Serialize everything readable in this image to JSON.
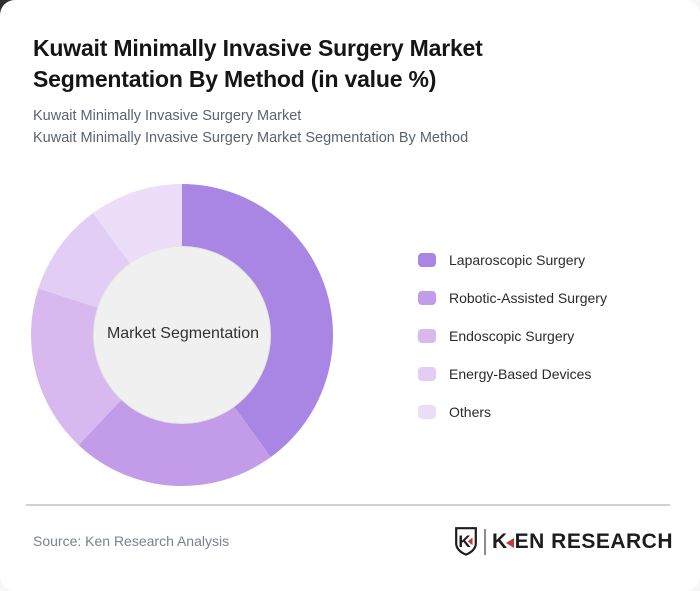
{
  "header": {
    "title": "Kuwait Minimally Invasive Surgery Market Segmentation By Method (in value %)",
    "subtitle_line1": "Kuwait Minimally Invasive Surgery Market",
    "subtitle_line2": "Kuwait Minimally Invasive Surgery Market Segmentation By Method"
  },
  "chart_data": {
    "type": "pie",
    "variant": "donut",
    "title": "Kuwait Minimally Invasive Surgery Market Segmentation By Method (in value %)",
    "center_label": "Market Segmentation",
    "categories": [
      "Laparoscopic Surgery",
      "Robotic-Assisted Surgery",
      "Endoscopic Surgery",
      "Energy-Based Devices",
      "Others"
    ],
    "values": [
      40,
      22,
      18,
      10,
      10
    ],
    "unit": "% of value",
    "colors": [
      "#A986E4",
      "#C29CE9",
      "#D7B9F0",
      "#E2CEF5",
      "#ECDEF9"
    ],
    "inner_circle_color": "#F0F0F0",
    "start_angle_deg": 0,
    "direction": "clockwise",
    "legend_position": "right"
  },
  "footer": {
    "source": "Source: Ken Research Analysis",
    "logo": {
      "shield_letter": "K",
      "wordmark_start": "K",
      "wordmark_end": "EN RESEARCH",
      "red": "#C23B33",
      "dark": "#1D1D1D"
    }
  }
}
